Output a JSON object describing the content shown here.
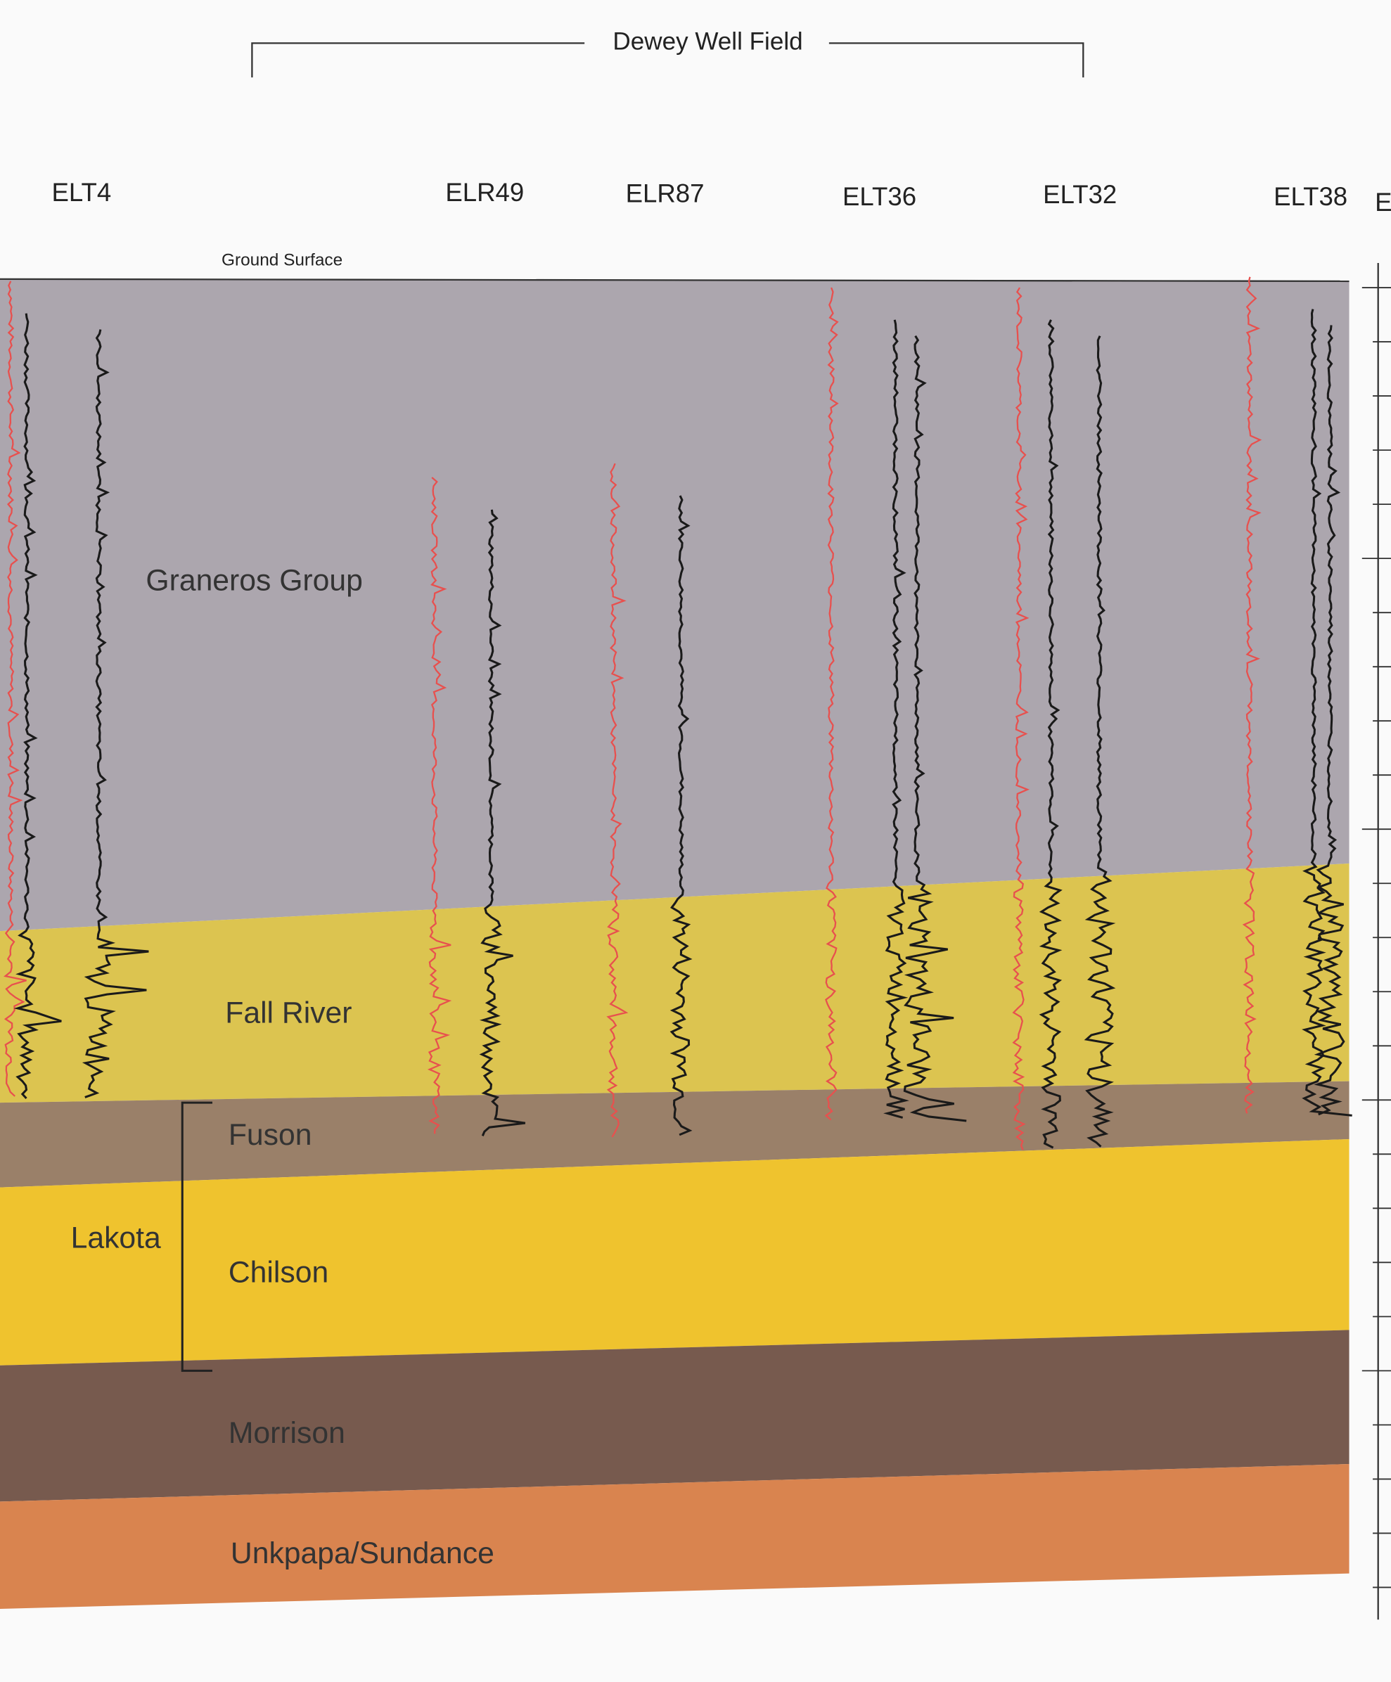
{
  "header": {
    "title": "Dewey Well Field"
  },
  "wells": [
    "ELT4",
    "ELR49",
    "ELR87",
    "ELT36",
    "ELT32",
    "ELT38"
  ],
  "edge_label": "E",
  "ground_surface": "Ground Surface",
  "formations": [
    "Graneros Group",
    "Fall River",
    "Fuson",
    "Chilson",
    "Morrison",
    "Unkpapa/Sundance"
  ],
  "group_label": "Lakota"
}
